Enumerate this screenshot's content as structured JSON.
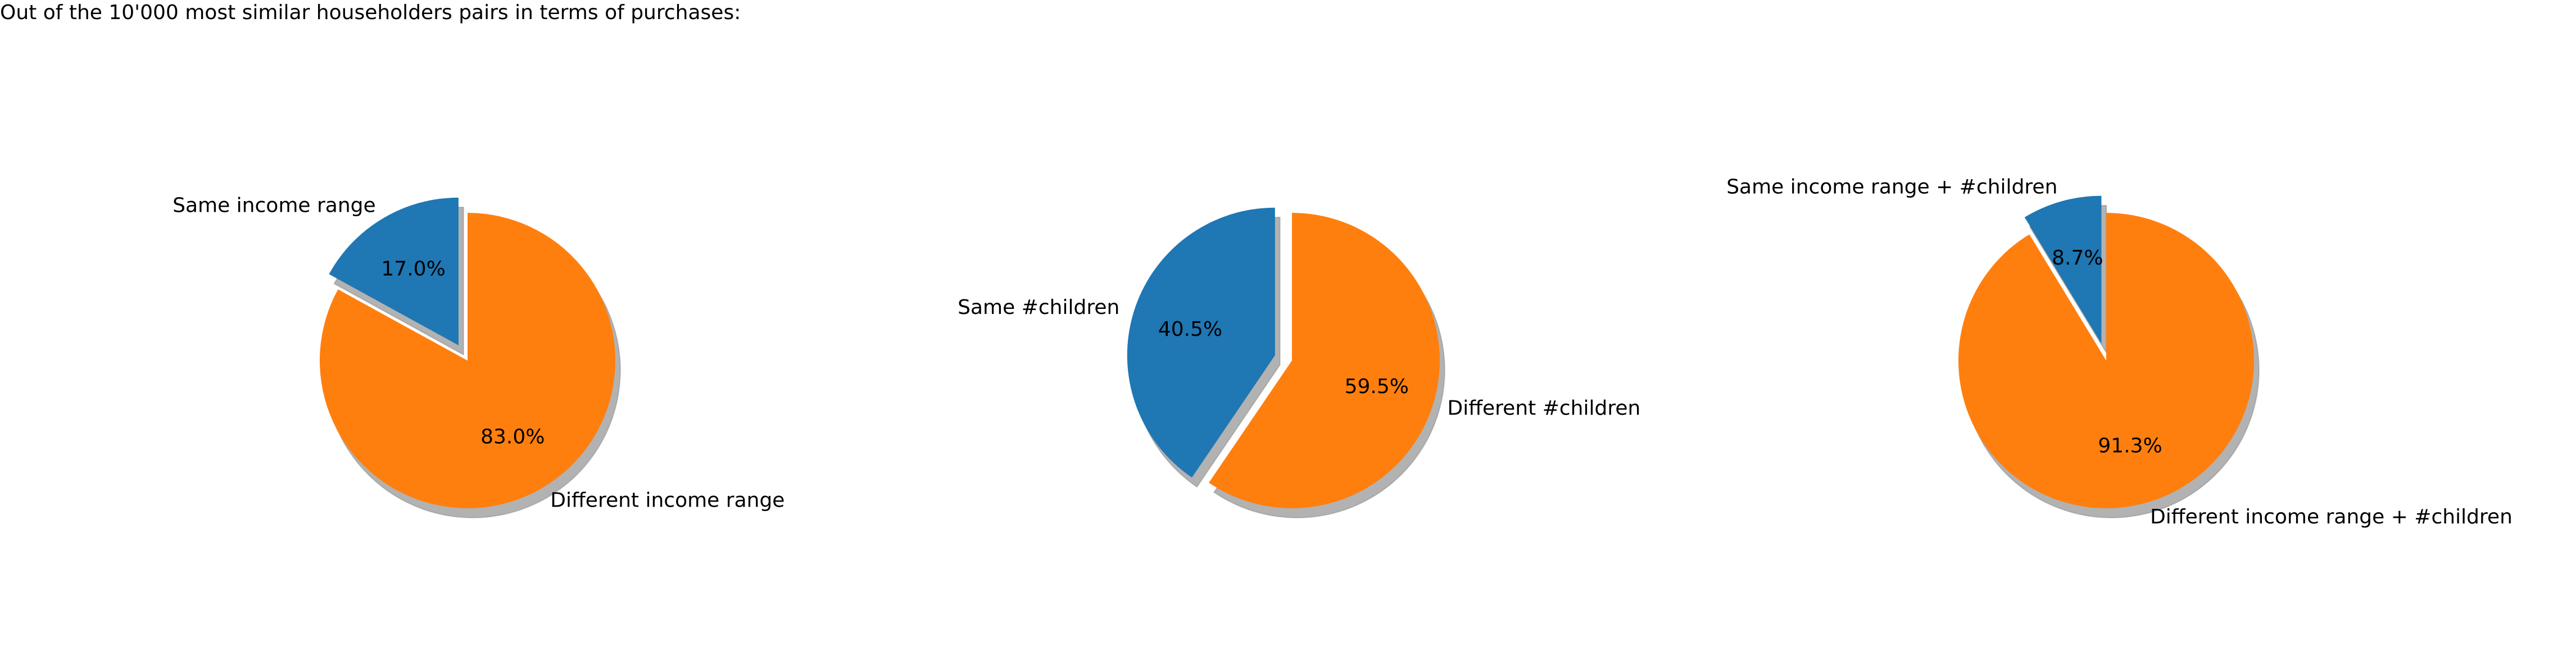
{
  "title": "Out of the 10'000 most similar householders pairs in terms of purchases:",
  "chart_data": [
    {
      "type": "pie",
      "slices": [
        {
          "label": "Same income range",
          "value": 17.0,
          "pct_label": "17.0%",
          "color": "#1f77b4",
          "exploded": true
        },
        {
          "label": "Different income range",
          "value": 83.0,
          "pct_label": "83.0%",
          "color": "#ff7f0e",
          "exploded": false
        }
      ],
      "start_angle": 90,
      "shadow": true
    },
    {
      "type": "pie",
      "slices": [
        {
          "label": "Same #children",
          "value": 40.5,
          "pct_label": "40.5%",
          "color": "#1f77b4",
          "exploded": true
        },
        {
          "label": "Different #children",
          "value": 59.5,
          "pct_label": "59.5%",
          "color": "#ff7f0e",
          "exploded": false
        }
      ],
      "start_angle": 90,
      "shadow": true
    },
    {
      "type": "pie",
      "slices": [
        {
          "label": "Same income range + #children",
          "value": 8.7,
          "pct_label": "8.7%",
          "color": "#1f77b4",
          "exploded": true
        },
        {
          "label": "Different income range + #children",
          "value": 91.3,
          "pct_label": "91.3%",
          "color": "#ff7f0e",
          "exploded": false
        }
      ],
      "start_angle": 90,
      "shadow": true
    }
  ]
}
